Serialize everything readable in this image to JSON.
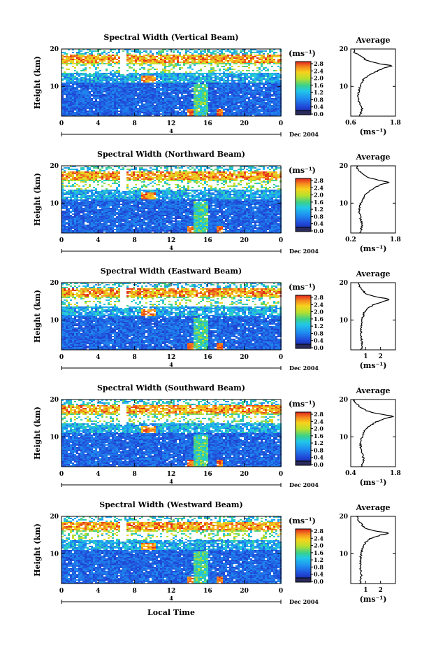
{
  "figure": {
    "xlabel": "Local Time",
    "date_label": "Dec 2004",
    "marker_label": "4",
    "colorbar_unit_label": "(ms⁻¹)",
    "average_title": "Average",
    "average_xlabel": "(ms⁻¹)",
    "colorbar_ticks": [
      "2.8",
      "2.4",
      "2.0",
      "1.6",
      "1.2",
      "0.8",
      "0.4",
      "0.0"
    ],
    "x_ticks": [
      "0",
      "4",
      "8",
      "12",
      "16",
      "20",
      "0"
    ],
    "y_ticks": [
      "20",
      "10"
    ],
    "ylabel": "Height (km)"
  },
  "chart_data": [
    {
      "type": "heatmap",
      "title": "Spectral Width (Vertical Beam)",
      "ylabel": "Height (km)",
      "xlabel": "",
      "xlim": [
        0,
        24
      ],
      "ylim": [
        2,
        20
      ],
      "color_range": [
        0.0,
        2.8
      ],
      "profile": {
        "title": "Average",
        "xlabel": "(ms⁻¹)",
        "xlim": [
          0.6,
          1.8
        ],
        "x_ticks": [
          "0.6",
          "1.8"
        ],
        "heights": [
          2,
          4,
          6,
          8,
          10,
          12,
          13,
          14,
          15,
          15.5,
          16,
          16.5,
          17,
          18,
          19,
          20
        ],
        "values": [
          0.85,
          0.9,
          0.8,
          0.8,
          0.85,
          0.95,
          1.1,
          1.3,
          1.5,
          1.75,
          1.4,
          1.2,
          1.0,
          0.9,
          0.7,
          0.7
        ]
      }
    },
    {
      "type": "heatmap",
      "title": "Spectral Width (Northward Beam)",
      "ylabel": "Height (km)",
      "xlabel": "",
      "xlim": [
        0,
        24
      ],
      "ylim": [
        2,
        20
      ],
      "color_range": [
        0.0,
        2.8
      ],
      "profile": {
        "title": "Average",
        "xlabel": "(ms⁻¹)",
        "xlim": [
          0.2,
          1.8
        ],
        "x_ticks": [
          "0.2",
          "1.8"
        ],
        "heights": [
          2,
          4,
          6,
          8,
          10,
          12,
          13,
          14,
          15,
          15.5,
          16,
          16.5,
          17,
          18,
          19,
          20
        ],
        "values": [
          0.55,
          0.6,
          0.55,
          0.5,
          0.55,
          0.7,
          0.85,
          1.0,
          1.3,
          1.6,
          1.3,
          1.0,
          0.8,
          0.6,
          0.45,
          0.4
        ]
      }
    },
    {
      "type": "heatmap",
      "title": "Spectral Width (Eastward Beam)",
      "ylabel": "Height (km)",
      "xlabel": "",
      "xlim": [
        0,
        24
      ],
      "ylim": [
        2,
        20
      ],
      "color_range": [
        0.0,
        2.8
      ],
      "profile": {
        "title": "Average",
        "xlabel": "(ms⁻¹)",
        "xlim": [
          0,
          3
        ],
        "x_ticks": [
          "1",
          "2"
        ],
        "heights": [
          2,
          4,
          6,
          8,
          10,
          12,
          13,
          14,
          15,
          15.5,
          16,
          16.5,
          17,
          18,
          19,
          20
        ],
        "values": [
          0.7,
          0.75,
          0.7,
          0.7,
          0.75,
          0.9,
          1.1,
          1.5,
          2.2,
          2.7,
          2.0,
          1.4,
          1.0,
          0.8,
          0.6,
          0.5
        ]
      }
    },
    {
      "type": "heatmap",
      "title": "Spectral Width (Southward Beam)",
      "ylabel": "Height (km)",
      "xlabel": "",
      "xlim": [
        0,
        24
      ],
      "ylim": [
        2,
        20
      ],
      "color_range": [
        0.0,
        2.8
      ],
      "profile": {
        "title": "Average",
        "xlabel": "(ms⁻¹)",
        "xlim": [
          0.4,
          1.8
        ],
        "x_ticks": [
          "0.4",
          "1.8"
        ],
        "heights": [
          2,
          4,
          6,
          8,
          10,
          12,
          13,
          14,
          15,
          15.5,
          16,
          16.5,
          17,
          18,
          19,
          20
        ],
        "values": [
          0.75,
          0.8,
          0.75,
          0.7,
          0.75,
          0.85,
          1.0,
          1.2,
          1.5,
          1.75,
          1.4,
          1.1,
          0.9,
          0.7,
          0.55,
          0.5
        ]
      }
    },
    {
      "type": "heatmap",
      "title": "Spectral Width (Westward Beam)",
      "ylabel": "Height (km)",
      "xlabel": "Local Time",
      "xlim": [
        0,
        24
      ],
      "ylim": [
        2,
        20
      ],
      "color_range": [
        0.0,
        2.8
      ],
      "profile": {
        "title": "Average",
        "xlabel": "(ms⁻¹)",
        "xlim": [
          0,
          3
        ],
        "x_ticks": [
          "1",
          "2"
        ],
        "heights": [
          2,
          4,
          6,
          8,
          10,
          12,
          13,
          14,
          15,
          15.5,
          16,
          16.5,
          17,
          18,
          19,
          20
        ],
        "values": [
          0.65,
          0.7,
          0.65,
          0.65,
          0.7,
          0.85,
          1.0,
          1.3,
          2.0,
          2.6,
          1.8,
          1.2,
          0.9,
          0.7,
          0.5,
          0.45
        ]
      }
    }
  ]
}
